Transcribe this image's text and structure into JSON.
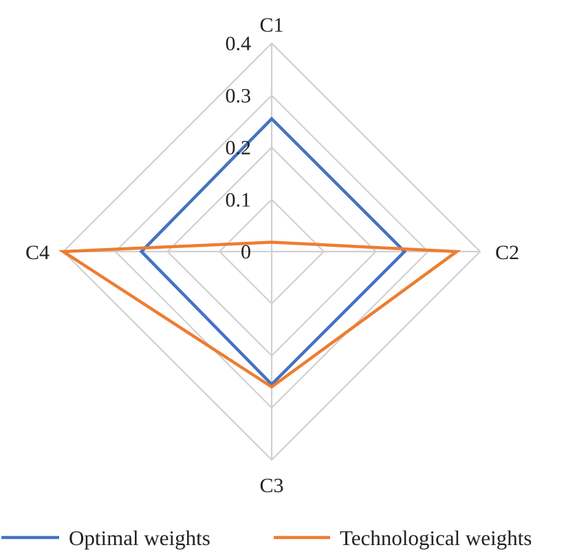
{
  "chart_data": {
    "type": "radar",
    "axes": [
      "C1",
      "C2",
      "C3",
      "C4"
    ],
    "rlim": [
      0,
      0.4
    ],
    "ticks": [
      "0",
      "0.1",
      "0.2",
      "0.3",
      "0.4"
    ],
    "tick_values": [
      0,
      0.1,
      0.2,
      0.3,
      0.4
    ],
    "grid": true,
    "legend_position": "bottom",
    "series": [
      {
        "name": "Optimal weights",
        "values": [
          0.255,
          0.255,
          0.255,
          0.25
        ],
        "color": "#4472C4"
      },
      {
        "name": "Technological weights",
        "values": [
          0.018,
          0.355,
          0.26,
          0.4
        ],
        "color": "#ED7D31"
      }
    ],
    "gridline_color": "#d0d0d0"
  }
}
